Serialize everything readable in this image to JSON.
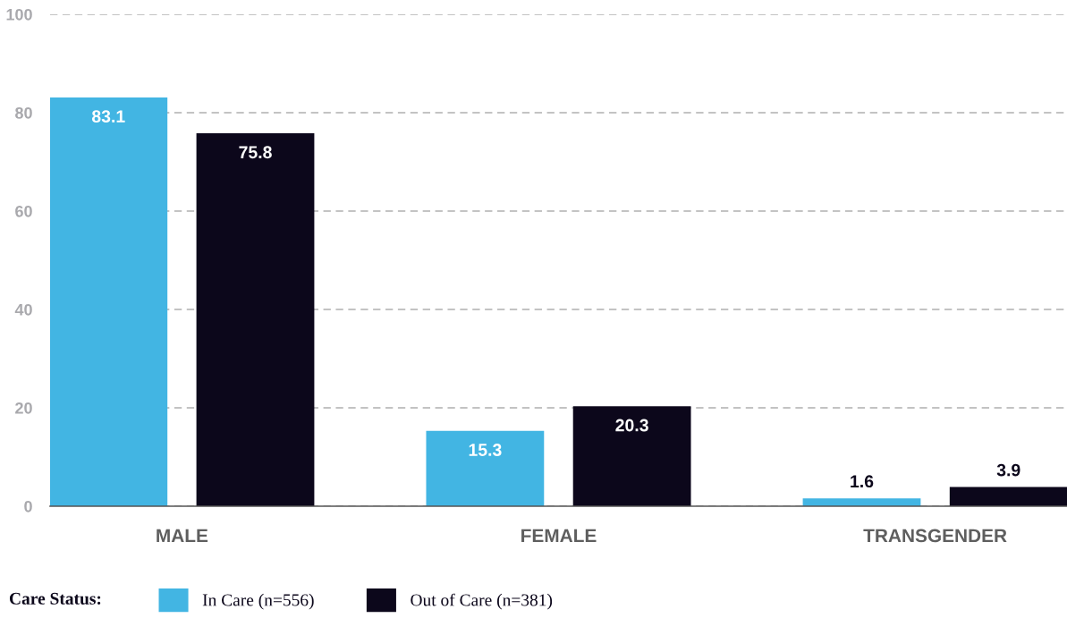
{
  "chart_data": {
    "type": "bar",
    "categories": [
      "MALE",
      "FEMALE",
      "TRANSGENDER"
    ],
    "series": [
      {
        "name": "In Care (n=556)",
        "color": "#42b5e3",
        "values": [
          83.1,
          15.3,
          1.6
        ]
      },
      {
        "name": "Out of Care (n=381)",
        "color": "#0c071b",
        "values": [
          75.8,
          20.3,
          3.9
        ]
      }
    ],
    "ylim": [
      0,
      100
    ],
    "yticks": [
      0,
      20,
      40,
      60,
      80,
      100
    ],
    "grid": "y",
    "legend": "bottom left",
    "legend_title": "Care Status:",
    "data_labels": true
  }
}
